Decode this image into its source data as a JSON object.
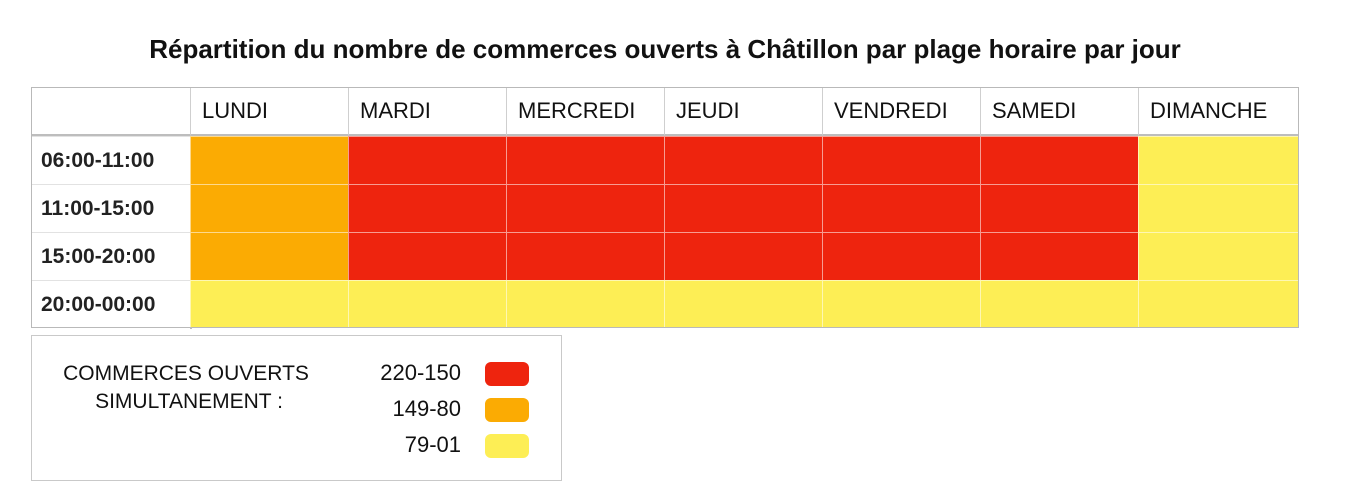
{
  "chart_data": {
    "type": "heatmap",
    "title": "Répartition du nombre de commerces ouverts à Châtillon par plage horaire par jour",
    "columns": [
      "LUNDI",
      "MARDI",
      "MERCREDI",
      "JEUDI",
      "VENDREDI",
      "SAMEDI",
      "DIMANCHE"
    ],
    "rows": [
      "06:00-11:00",
      "11:00-15:00",
      "15:00-20:00",
      "20:00-00:00"
    ],
    "values": [
      [
        "149-80",
        "220-150",
        "220-150",
        "220-150",
        "220-150",
        "220-150",
        "79-01"
      ],
      [
        "149-80",
        "220-150",
        "220-150",
        "220-150",
        "220-150",
        "220-150",
        "79-01"
      ],
      [
        "149-80",
        "220-150",
        "220-150",
        "220-150",
        "220-150",
        "220-150",
        "79-01"
      ],
      [
        "79-01",
        "79-01",
        "79-01",
        "79-01",
        "79-01",
        "79-01",
        "79-01"
      ]
    ],
    "legend": {
      "title_line1": "COMMERCES OUVERTS",
      "title_line2": "SIMULTANEMENT :",
      "placement": "bottom-left",
      "entries": [
        {
          "label": "220-150",
          "color": "#ee240e"
        },
        {
          "label": "149-80",
          "color": "#fbab03"
        },
        {
          "label": "79-01",
          "color": "#fdee55"
        }
      ]
    }
  }
}
